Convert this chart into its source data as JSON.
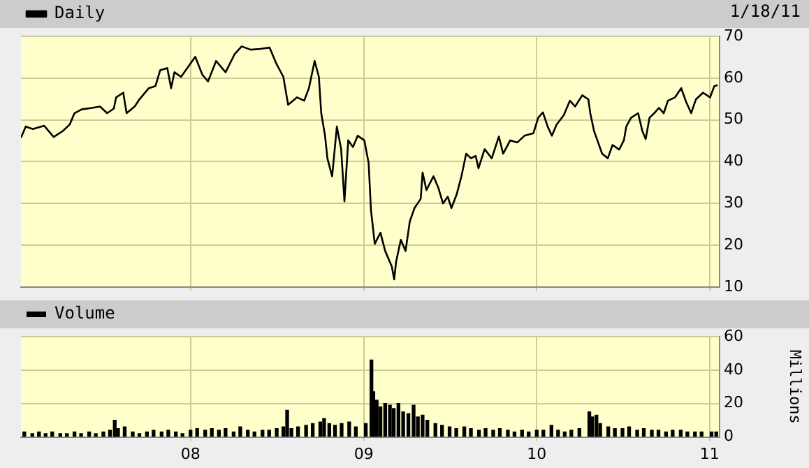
{
  "chart_data": [
    {
      "type": "line",
      "annotations": [
        "1/18/11"
      ],
      "legend": "top left",
      "grid": true,
      "marker": "none",
      "tick_labels": "y",
      "xlim": [
        "2007-01-08",
        "2011-01-22"
      ],
      "xticks": [
        {
          "value": "2008-01-01",
          "label": null
        },
        {
          "value": "2009-01-01",
          "label": null
        },
        {
          "value": "2010-01-01",
          "label": null
        },
        {
          "value": "2011-01-01",
          "label": null
        }
      ],
      "ylim": [
        10,
        70
      ],
      "yticks": [
        10,
        20,
        30,
        40,
        50,
        60,
        70
      ],
      "x": [
        "2007-01-08",
        "2007-01-18",
        "2007-02-02",
        "2007-02-26",
        "2007-03-18",
        "2007-04-06",
        "2007-04-21",
        "2007-05-01",
        "2007-05-16",
        "2007-06-09",
        "2007-06-24",
        "2007-07-09",
        "2007-07-23",
        "2007-07-28",
        "2007-08-12",
        "2007-08-19",
        "2007-09-05",
        "2007-09-15",
        "2007-10-05",
        "2007-10-19",
        "2007-10-29",
        "2007-11-13",
        "2007-11-21",
        "2007-11-28",
        "2007-12-12",
        "2007-12-22",
        "2008-01-11",
        "2008-01-26",
        "2008-02-07",
        "2008-02-24",
        "2008-03-15",
        "2008-04-03",
        "2008-04-18",
        "2008-05-07",
        "2008-05-27",
        "2008-06-16",
        "2008-06-30",
        "2008-07-15",
        "2008-07-25",
        "2008-08-13",
        "2008-08-28",
        "2008-09-07",
        "2008-09-19",
        "2008-09-28",
        "2008-10-03",
        "2008-10-11",
        "2008-10-16",
        "2008-10-26",
        "2008-11-05",
        "2008-11-14",
        "2008-11-21",
        "2008-11-29",
        "2008-12-09",
        "2008-12-19",
        "2009-01-02",
        "2009-01-11",
        "2009-01-16",
        "2009-01-24",
        "2009-02-05",
        "2009-02-15",
        "2009-03-01",
        "2009-03-06",
        "2009-03-10",
        "2009-03-20",
        "2009-03-30",
        "2009-04-08",
        "2009-04-18",
        "2009-05-01",
        "2009-05-05",
        "2009-05-13",
        "2009-05-28",
        "2009-06-07",
        "2009-06-17",
        "2009-06-27",
        "2009-07-05",
        "2009-07-16",
        "2009-07-26",
        "2009-08-05",
        "2009-08-15",
        "2009-08-25",
        "2009-08-31",
        "2009-09-13",
        "2009-09-28",
        "2009-10-13",
        "2009-10-22",
        "2009-11-06",
        "2009-11-21",
        "2009-12-06",
        "2009-12-25",
        "2010-01-04",
        "2010-01-14",
        "2010-01-24",
        "2010-02-02",
        "2010-02-12",
        "2010-02-27",
        "2010-03-12",
        "2010-03-23",
        "2010-04-07",
        "2010-04-20",
        "2010-04-24",
        "2010-05-02",
        "2010-05-09",
        "2010-05-19",
        "2010-05-31",
        "2010-06-10",
        "2010-06-24",
        "2010-07-04",
        "2010-07-09",
        "2010-07-19",
        "2010-08-03",
        "2010-08-12",
        "2010-08-19",
        "2010-08-27",
        "2010-09-06",
        "2010-09-16",
        "2010-09-26",
        "2010-10-05",
        "2010-10-20",
        "2010-11-02",
        "2010-11-12",
        "2010-11-23",
        "2010-12-03",
        "2010-12-18",
        "2011-01-02",
        "2011-01-11",
        "2011-01-18"
      ],
      "series": [
        {
          "name": "Daily",
          "color": "#000000",
          "values": [
            45.7,
            48.4,
            47.8,
            48.6,
            45.9,
            47.3,
            48.9,
            51.6,
            52.5,
            52.9,
            53.2,
            51.6,
            52.7,
            55.4,
            56.5,
            51.6,
            53.2,
            54.9,
            57.6,
            58.1,
            61.9,
            62.4,
            57.6,
            61.4,
            60.3,
            61.9,
            65.1,
            60.8,
            59.2,
            64.1,
            61.4,
            65.7,
            67.6,
            66.8,
            67,
            67.3,
            63.5,
            60.3,
            53.6,
            55.4,
            54.6,
            57.6,
            64.1,
            60.3,
            51.6,
            46.2,
            40.8,
            36.5,
            48.4,
            43,
            30.5,
            45.1,
            43.5,
            46.2,
            45.1,
            39.7,
            28.4,
            20.3,
            23,
            18.6,
            14.9,
            11.8,
            16,
            21.3,
            18.6,
            25.7,
            28.9,
            31.1,
            37.4,
            33.2,
            36.5,
            33.8,
            30,
            31.6,
            28.9,
            32.2,
            36.5,
            41.9,
            40.8,
            41.4,
            38.4,
            43,
            40.8,
            46,
            41.9,
            45.1,
            44.6,
            46.2,
            46.8,
            50.5,
            51.8,
            48.4,
            46.2,
            48.9,
            51.1,
            54.6,
            53.2,
            55.9,
            54.9,
            51.6,
            47.3,
            45.1,
            41.9,
            40.8,
            44,
            42.9,
            45.1,
            48.4,
            50.5,
            51.6,
            47.3,
            45.4,
            50.5,
            51.6,
            52.9,
            51.6,
            54.6,
            55.4,
            57.6,
            54.4,
            51.6,
            54.9,
            56.5,
            55.4,
            58.1,
            58.3
          ]
        }
      ]
    },
    {
      "type": "bar",
      "legend": "top left",
      "grid": true,
      "ylabel": "Millions",
      "xlim": [
        "2007-01-08",
        "2011-01-22"
      ],
      "xticks": [
        {
          "value": "2008-01-01",
          "label": "08"
        },
        {
          "value": "2009-01-01",
          "label": "09"
        },
        {
          "value": "2010-01-01",
          "label": "10"
        },
        {
          "value": "2011-01-01",
          "label": "11"
        }
      ],
      "ylim": [
        0,
        60
      ],
      "yticks": [
        0,
        20,
        40,
        60
      ],
      "x": [
        "2007-01-15",
        "2007-02-01",
        "2007-02-15",
        "2007-03-01",
        "2007-03-15",
        "2007-04-01",
        "2007-04-15",
        "2007-05-01",
        "2007-05-15",
        "2007-06-01",
        "2007-06-15",
        "2007-07-01",
        "2007-07-15",
        "2007-07-25",
        "2007-08-01",
        "2007-08-15",
        "2007-09-01",
        "2007-09-15",
        "2007-10-01",
        "2007-10-15",
        "2007-11-01",
        "2007-11-15",
        "2007-12-01",
        "2007-12-15",
        "2008-01-01",
        "2008-01-15",
        "2008-02-01",
        "2008-02-15",
        "2008-03-01",
        "2008-03-15",
        "2008-04-01",
        "2008-04-15",
        "2008-05-01",
        "2008-05-15",
        "2008-06-01",
        "2008-06-15",
        "2008-07-01",
        "2008-07-15",
        "2008-07-23",
        "2008-08-01",
        "2008-08-15",
        "2008-09-01",
        "2008-09-15",
        "2008-10-01",
        "2008-10-09",
        "2008-10-20",
        "2008-11-01",
        "2008-11-15",
        "2008-12-01",
        "2008-12-15",
        "2009-01-05",
        "2009-01-17",
        "2009-01-21",
        "2009-01-28",
        "2009-02-05",
        "2009-02-15",
        "2009-02-25",
        "2009-03-05",
        "2009-03-15",
        "2009-03-25",
        "2009-04-05",
        "2009-04-16",
        "2009-04-25",
        "2009-05-05",
        "2009-05-15",
        "2009-06-01",
        "2009-06-15",
        "2009-07-01",
        "2009-07-15",
        "2009-08-01",
        "2009-08-15",
        "2009-09-01",
        "2009-09-15",
        "2009-10-01",
        "2009-10-15",
        "2009-11-01",
        "2009-11-15",
        "2009-12-01",
        "2009-12-15",
        "2010-01-01",
        "2010-01-15",
        "2010-02-01",
        "2010-02-15",
        "2010-03-01",
        "2010-03-15",
        "2010-04-01",
        "2010-04-22",
        "2010-04-28",
        "2010-05-07",
        "2010-05-15",
        "2010-06-01",
        "2010-06-15",
        "2010-07-01",
        "2010-07-15",
        "2010-08-01",
        "2010-08-15",
        "2010-09-01",
        "2010-09-15",
        "2010-10-01",
        "2010-10-15",
        "2010-11-01",
        "2010-11-15",
        "2010-12-01",
        "2010-12-15",
        "2011-01-05",
        "2011-01-15"
      ],
      "series": [
        {
          "name": "Volume",
          "color": "#000000",
          "values": [
            3,
            2,
            3,
            2,
            3,
            2,
            2,
            3,
            2,
            3,
            2,
            3,
            4,
            10,
            5,
            6,
            3,
            2,
            3,
            4,
            3,
            4,
            3,
            2,
            4,
            5,
            4,
            5,
            4,
            5,
            3,
            6,
            4,
            3,
            4,
            4,
            5,
            6,
            16,
            5,
            6,
            7,
            8,
            9,
            11,
            8,
            7,
            8,
            9,
            6,
            8,
            46,
            27,
            22,
            18,
            20,
            19,
            17,
            20,
            15,
            14,
            19,
            12,
            13,
            10,
            8,
            7,
            6,
            5,
            6,
            5,
            4,
            5,
            4,
            5,
            4,
            3,
            4,
            3,
            4,
            4,
            7,
            4,
            3,
            4,
            5,
            15,
            12,
            13,
            8,
            6,
            5,
            5,
            6,
            4,
            5,
            4,
            4,
            3,
            4,
            4,
            3,
            3,
            3,
            3,
            3
          ]
        }
      ]
    }
  ]
}
